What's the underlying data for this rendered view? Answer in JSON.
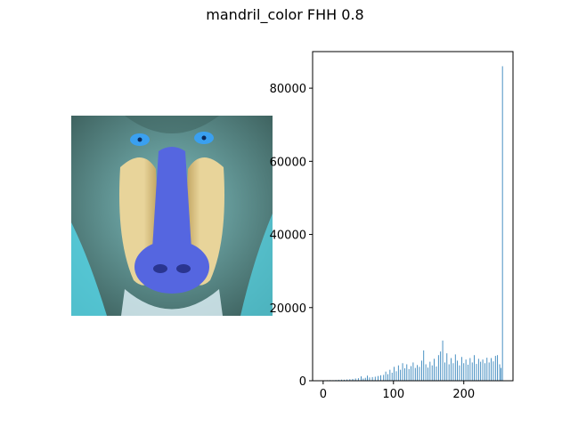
{
  "figure": {
    "title": "mandril_color FHH 0.8"
  },
  "image_panel": {
    "subject": "mandrill",
    "colors": {
      "background_fur": "#7fbfc0",
      "dark_fur": "#3c5f5c",
      "nose": "#5566e0",
      "cheek": "#e8d49a",
      "cheek_shadow": "#b99a55",
      "eye": "#3aa0f0",
      "beard": "#d8ecf2",
      "cyan_fur": "#56d8ea"
    }
  },
  "chart_data": {
    "type": "bar",
    "x_ticks": [
      0,
      100,
      200
    ],
    "y_ticks": [
      0,
      20000,
      40000,
      60000,
      80000
    ],
    "x_tick_labels": [
      "0",
      "100",
      "200"
    ],
    "y_tick_labels": [
      "0",
      "20000",
      "40000",
      "60000",
      "80000"
    ],
    "xlim": [
      -15,
      270
    ],
    "ylim": [
      0,
      90000
    ],
    "bar_color": "#1f77b4",
    "grid": false,
    "legend": "none",
    "bins": [
      {
        "x": 2,
        "y": 120
      },
      {
        "x": 6,
        "y": 150
      },
      {
        "x": 10,
        "y": 180
      },
      {
        "x": 14,
        "y": 160
      },
      {
        "x": 18,
        "y": 200
      },
      {
        "x": 22,
        "y": 260
      },
      {
        "x": 26,
        "y": 300
      },
      {
        "x": 30,
        "y": 280
      },
      {
        "x": 34,
        "y": 350
      },
      {
        "x": 38,
        "y": 420
      },
      {
        "x": 42,
        "y": 500
      },
      {
        "x": 46,
        "y": 620
      },
      {
        "x": 50,
        "y": 700
      },
      {
        "x": 54,
        "y": 1200
      },
      {
        "x": 57,
        "y": 600
      },
      {
        "x": 60,
        "y": 800
      },
      {
        "x": 63,
        "y": 1400
      },
      {
        "x": 66,
        "y": 900
      },
      {
        "x": 70,
        "y": 1000
      },
      {
        "x": 74,
        "y": 1100
      },
      {
        "x": 78,
        "y": 1300
      },
      {
        "x": 82,
        "y": 1500
      },
      {
        "x": 86,
        "y": 1600
      },
      {
        "x": 89,
        "y": 2500
      },
      {
        "x": 92,
        "y": 1800
      },
      {
        "x": 95,
        "y": 3000
      },
      {
        "x": 98,
        "y": 2200
      },
      {
        "x": 101,
        "y": 3800
      },
      {
        "x": 104,
        "y": 2600
      },
      {
        "x": 107,
        "y": 4200
      },
      {
        "x": 110,
        "y": 3000
      },
      {
        "x": 113,
        "y": 4800
      },
      {
        "x": 116,
        "y": 3400
      },
      {
        "x": 119,
        "y": 4500
      },
      {
        "x": 122,
        "y": 3200
      },
      {
        "x": 125,
        "y": 4000
      },
      {
        "x": 128,
        "y": 5000
      },
      {
        "x": 131,
        "y": 3500
      },
      {
        "x": 134,
        "y": 4300
      },
      {
        "x": 137,
        "y": 3800
      },
      {
        "x": 140,
        "y": 5500
      },
      {
        "x": 143,
        "y": 8300
      },
      {
        "x": 146,
        "y": 4500
      },
      {
        "x": 149,
        "y": 3600
      },
      {
        "x": 152,
        "y": 5200
      },
      {
        "x": 155,
        "y": 4200
      },
      {
        "x": 158,
        "y": 6000
      },
      {
        "x": 161,
        "y": 3900
      },
      {
        "x": 164,
        "y": 7000
      },
      {
        "x": 167,
        "y": 8000
      },
      {
        "x": 170,
        "y": 11000
      },
      {
        "x": 173,
        "y": 5000
      },
      {
        "x": 176,
        "y": 7500
      },
      {
        "x": 179,
        "y": 4500
      },
      {
        "x": 182,
        "y": 6200
      },
      {
        "x": 185,
        "y": 4800
      },
      {
        "x": 188,
        "y": 7200
      },
      {
        "x": 191,
        "y": 5500
      },
      {
        "x": 194,
        "y": 4200
      },
      {
        "x": 197,
        "y": 6500
      },
      {
        "x": 200,
        "y": 4800
      },
      {
        "x": 203,
        "y": 5800
      },
      {
        "x": 206,
        "y": 4400
      },
      {
        "x": 209,
        "y": 6200
      },
      {
        "x": 212,
        "y": 5000
      },
      {
        "x": 215,
        "y": 7000
      },
      {
        "x": 218,
        "y": 4600
      },
      {
        "x": 221,
        "y": 6000
      },
      {
        "x": 224,
        "y": 5200
      },
      {
        "x": 227,
        "y": 5800
      },
      {
        "x": 230,
        "y": 4800
      },
      {
        "x": 233,
        "y": 6300
      },
      {
        "x": 236,
        "y": 5000
      },
      {
        "x": 239,
        "y": 6200
      },
      {
        "x": 242,
        "y": 5300
      },
      {
        "x": 245,
        "y": 6800
      },
      {
        "x": 248,
        "y": 7000
      },
      {
        "x": 251,
        "y": 4500
      },
      {
        "x": 253,
        "y": 3500
      },
      {
        "x": 255,
        "y": 86000
      }
    ]
  }
}
